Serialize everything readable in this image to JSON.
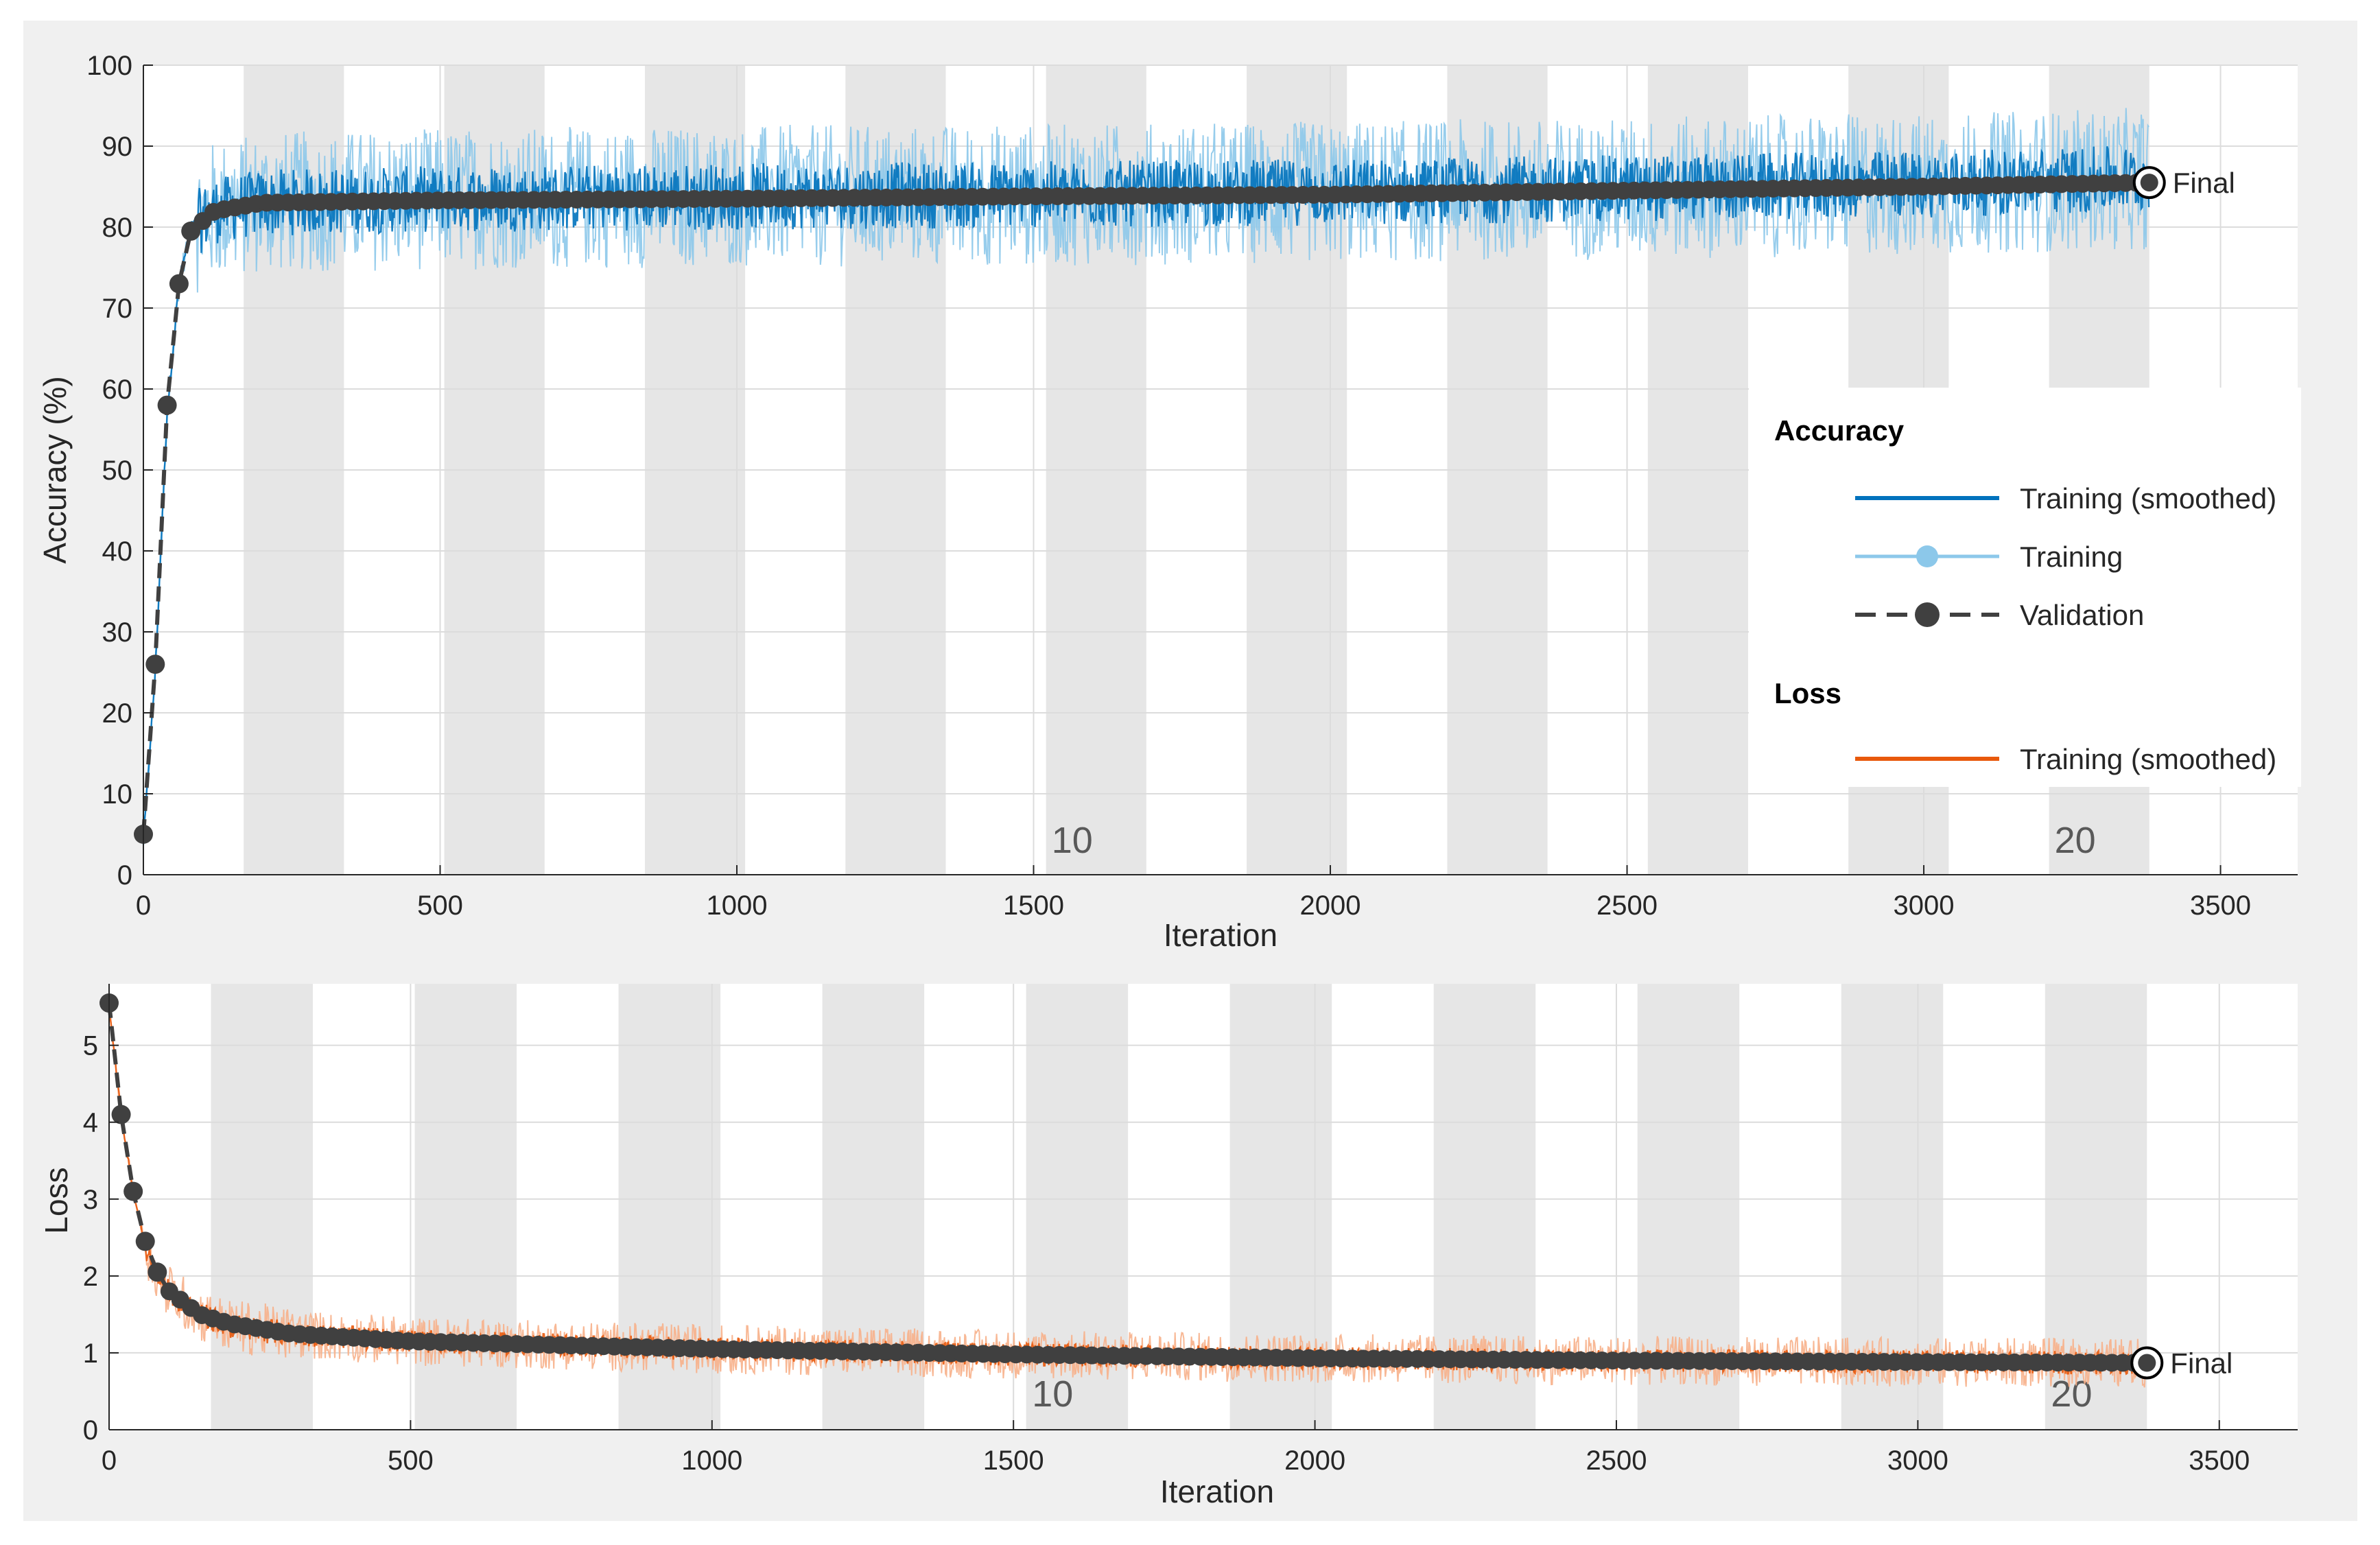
{
  "colors": {
    "train_acc_smoothed": "#0072bd",
    "train_acc": "#8cc8ea",
    "validation": "#404040",
    "train_loss_smoothed": "#e8590c",
    "train_loss": "#f7b08a",
    "epoch_band": "#e6e6e6"
  },
  "chart_data": [
    {
      "type": "line",
      "xlabel": "Iteration",
      "ylabel": "Accuracy (%)",
      "xlim": [
        0,
        3630
      ],
      "ylim": [
        0,
        100
      ],
      "xticks": [
        "0",
        "500",
        "1000",
        "1500",
        "2000",
        "2500",
        "3000",
        "3500"
      ],
      "yticks": [
        "0",
        "10",
        "20",
        "30",
        "40",
        "50",
        "60",
        "70",
        "80",
        "90",
        "100"
      ],
      "epoch_labels": [
        {
          "text": "10",
          "x": 1565
        },
        {
          "text": "20",
          "x": 3255
        }
      ],
      "final_label": "Final",
      "legend": {
        "placement": "right",
        "accuracy_heading": "Accuracy",
        "loss_heading": "Loss",
        "entries": [
          {
            "label": "Training (smoothed)"
          },
          {
            "label": "Training"
          },
          {
            "label": "Validation"
          },
          {
            "label": "Training (smoothed)"
          }
        ]
      },
      "series": [
        {
          "name": "Training (smoothed)",
          "x": [
            0,
            20,
            40,
            60,
            80,
            120,
            200,
            500,
            1000,
            1500,
            2000,
            2500,
            3000,
            3380
          ],
          "values": [
            4,
            25,
            57,
            73,
            80,
            82,
            83,
            83.5,
            83.8,
            84,
            84.3,
            84.8,
            85.3,
            86
          ]
        },
        {
          "name": "Validation",
          "x": [
            0,
            20,
            40,
            60,
            80,
            120,
            200,
            500,
            1000,
            1500,
            2000,
            2500,
            3000,
            3380
          ],
          "values": [
            5,
            26,
            58,
            73,
            79.5,
            82,
            83,
            83.3,
            83.5,
            83.8,
            84,
            84.5,
            85,
            85.5
          ]
        }
      ]
    },
    {
      "type": "line",
      "xlabel": "Iteration",
      "ylabel": "Loss",
      "xlim": [
        0,
        3630
      ],
      "ylim": [
        0,
        5.8
      ],
      "xticks": [
        "0",
        "500",
        "1000",
        "1500",
        "2000",
        "2500",
        "3000",
        "3500"
      ],
      "yticks": [
        "0",
        "1",
        "2",
        "3",
        "4",
        "5"
      ],
      "epoch_labels": [
        {
          "text": "10",
          "x": 1565
        },
        {
          "text": "20",
          "x": 3255
        }
      ],
      "final_label": "Final",
      "series": [
        {
          "name": "Training (smoothed)",
          "x": [
            0,
            20,
            40,
            60,
            80,
            100,
            150,
            200,
            300,
            500,
            1000,
            1500,
            2000,
            2500,
            3000,
            3380
          ],
          "values": [
            5.5,
            4.1,
            3.1,
            2.4,
            2.0,
            1.8,
            1.5,
            1.35,
            1.25,
            1.15,
            1.05,
            0.98,
            0.93,
            0.9,
            0.88,
            0.87
          ]
        },
        {
          "name": "Validation",
          "x": [
            0,
            20,
            40,
            60,
            80,
            100,
            150,
            200,
            300,
            500,
            1000,
            1500,
            2000,
            2500,
            3000,
            3380
          ],
          "values": [
            5.55,
            4.1,
            3.1,
            2.45,
            2.05,
            1.8,
            1.5,
            1.38,
            1.25,
            1.15,
            1.05,
            0.98,
            0.93,
            0.9,
            0.88,
            0.87
          ]
        }
      ]
    }
  ]
}
